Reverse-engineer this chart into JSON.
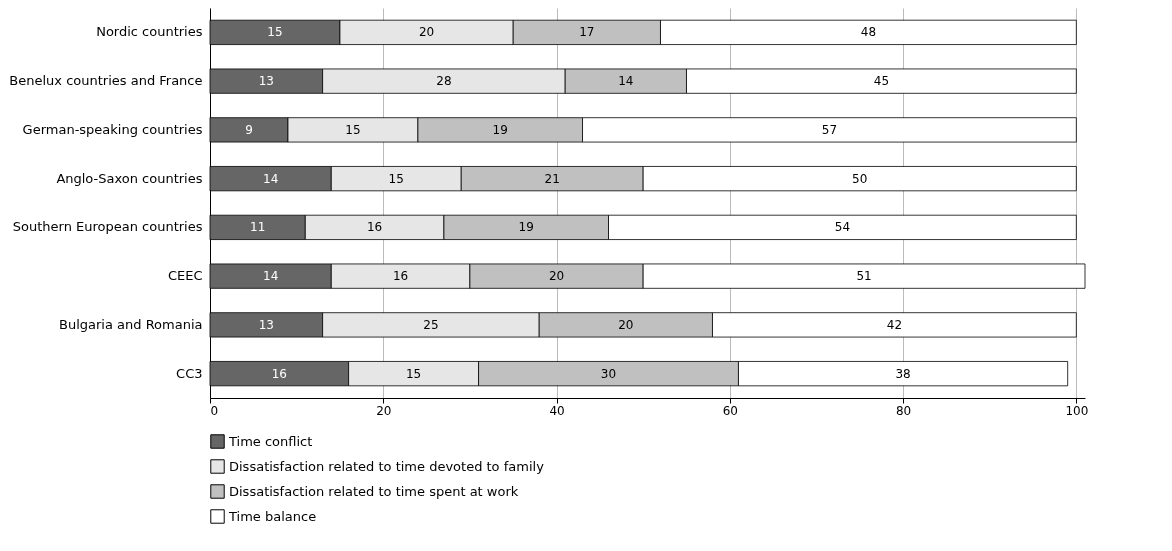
{
  "chart_data": {
    "type": "bar",
    "orientation": "horizontal",
    "stacked": true,
    "data_labels": true,
    "grid": "x",
    "legend": "bottom",
    "categories": [
      "Nordic  countries",
      "Benelux countries and France",
      "German-speaking countries",
      "Anglo-Saxon countries",
      "Southern European countries",
      "CEEC",
      "Bulgaria and Romania",
      "CC3"
    ],
    "series": [
      {
        "name": "Time conflict",
        "color": "#666666",
        "values": [
          15,
          13,
          9,
          14,
          11,
          14,
          13,
          16
        ]
      },
      {
        "name": "Dissatisfaction related to time devoted to family",
        "color": "#e6e6e6",
        "values": [
          20,
          28,
          15,
          15,
          16,
          16,
          25,
          15
        ]
      },
      {
        "name": "Dissatisfaction related to time spent at work",
        "color": "#c0c0c0",
        "values": [
          17,
          14,
          19,
          21,
          19,
          20,
          20,
          30
        ]
      },
      {
        "name": "Time balance",
        "color": "#ffffff",
        "values": [
          48,
          45,
          57,
          50,
          54,
          51,
          42,
          38
        ]
      }
    ],
    "xlim": [
      0,
      101
    ],
    "xticks": [
      0,
      20,
      40,
      60,
      80,
      100
    ]
  }
}
